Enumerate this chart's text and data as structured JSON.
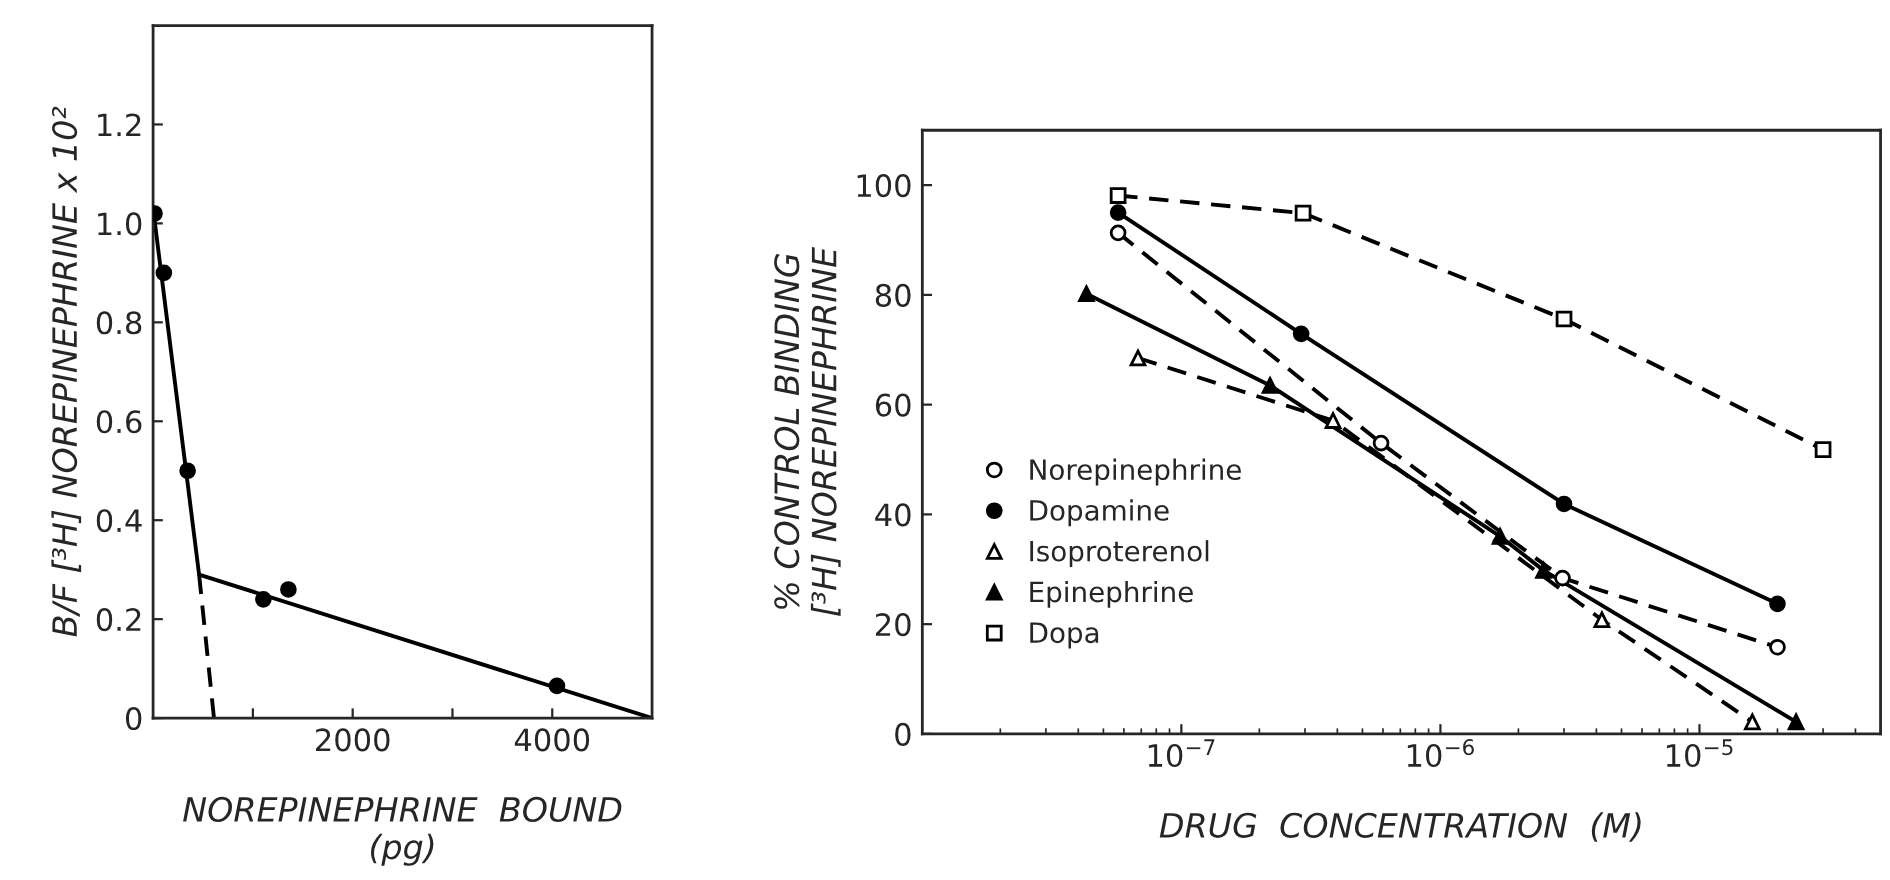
{
  "chart_data": [
    {
      "type": "scatter",
      "xlabel": "NOREPINEPHRINE  BOUND\n(pg)",
      "ylabel": "B/F [³H] NOREPINEPHRINE x 10²",
      "xlim": [
        0,
        5000
      ],
      "ylim": [
        0,
        1.4
      ],
      "xticks": [
        {
          "value": 1000,
          "label": null
        },
        2000,
        {
          "value": 3000,
          "label": null
        },
        4000
      ],
      "yticks": [
        0,
        0.2,
        0.4,
        0.6,
        0.8,
        {
          "value": 1.0,
          "label": "1.0"
        },
        1.2
      ],
      "grid": false,
      "series": [
        {
          "type": "scatter",
          "color": "#000000",
          "marker": "circle",
          "x": [
            14,
            108,
            346,
            1105,
            1356,
            4047
          ],
          "values": [
            1.02,
            0.9,
            0.5,
            0.24,
            0.26,
            0.065
          ]
        },
        {
          "type": "line",
          "color": "#000000",
          "marker": "none",
          "line_style": "solid",
          "x": [
            0,
            461,
            5000
          ],
          "values": [
            1.03,
            0.29,
            0
          ]
        },
        {
          "type": "line",
          "color": "#000000",
          "marker": "none",
          "line_style": "dashed",
          "x": [
            461,
            610
          ],
          "values": [
            0.29,
            0
          ]
        }
      ]
    },
    {
      "type": "line",
      "xlabel": "DRUG  CONCENTRATION  (M)",
      "ylabel": "% CONTROL BINDING\n[³H] NOREPINEPHRINE",
      "log": "x",
      "xlim": [
        1e-08,
        5e-05
      ],
      "ylim": [
        0,
        110
      ],
      "xticks": [
        {
          "value": 1e-07,
          "label": "10$^{−7}$"
        },
        {
          "value": 1e-06,
          "label": "10$^{−6}$"
        },
        {
          "value": 1e-05,
          "label": "10$^{−5}$"
        }
      ],
      "yticks": [
        0,
        20,
        40,
        60,
        80,
        100
      ],
      "grid": false,
      "legend": "lower left",
      "series": [
        {
          "name": "Norepinephrine",
          "color": "#000000",
          "marker": "circle",
          "line_style": "dashed",
          "x": [
            5.7e-08,
            5.9e-07,
            2.96e-06,
            2e-05
          ],
          "values": [
            91.3,
            53,
            28.4,
            15.8
          ]
        },
        {
          "name": "Dopamine",
          "color": "#000000",
          "marker": "circle",
          "line_style": "solid",
          "x": [
            5.7e-08,
            2.9e-07,
            3e-06,
            2e-05
          ],
          "values": [
            95,
            72.9,
            41.9,
            23.7
          ]
        },
        {
          "name": "Isoproterenol",
          "color": "#000000",
          "marker": "triangle",
          "line_style": "dashed",
          "x": [
            6.8e-08,
            3.85e-07,
            4.2e-06,
            1.6e-05
          ],
          "values": [
            68.5,
            57.1,
            20.8,
            2.2
          ]
        },
        {
          "name": "Epinephrine",
          "color": "#000000",
          "marker": "triangle",
          "line_style": "solid",
          "x": [
            4.3e-08,
            2.2e-07,
            1.7e-06,
            2.5e-06,
            2.36e-05
          ],
          "values": [
            80.2,
            63.5,
            36,
            29.8,
            2.2
          ]
        },
        {
          "name": "Dopa",
          "color": "#000000",
          "marker": "square",
          "line_style": "dashed",
          "x": [
            5.7e-08,
            2.95e-07,
            3e-06,
            3e-05
          ],
          "values": [
            98.1,
            94.9,
            75.6,
            51.8
          ]
        }
      ]
    }
  ]
}
